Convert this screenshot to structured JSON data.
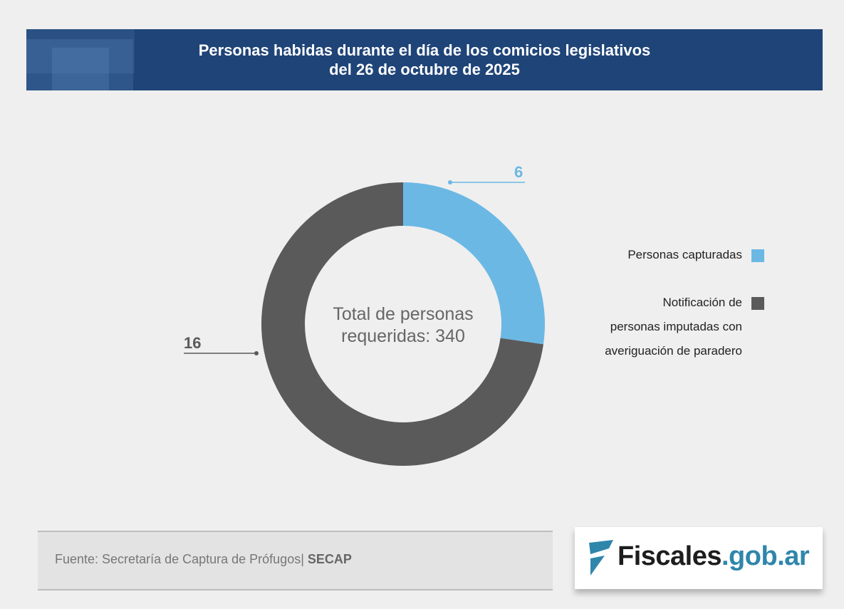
{
  "header": {
    "title_line1": "Personas habidas durante el día de los comicios legislativos",
    "title_line2": "del 26 de octubre de 2025"
  },
  "chart_data": {
    "type": "pie",
    "donut": true,
    "categories": [
      "Personas capturadas",
      "Notificación de personas imputadas con averiguación de paradero"
    ],
    "values": [
      6,
      16
    ],
    "data_labels": [
      "6",
      "16"
    ],
    "colors": [
      "#6bb8e4",
      "#5a5a5a"
    ],
    "center_text": [
      "Total de personas",
      "requeridas: 340"
    ],
    "legend_placement": "right"
  },
  "legend": {
    "item1": "Personas capturadas",
    "item2_line1": "Notificación de",
    "item2_line2": "personas imputadas con",
    "item2_line3": "averiguación de paradero"
  },
  "footer": {
    "source": "Fuente: Secretaría de Captura de Prófugos|",
    "source_bold": "SECAP"
  },
  "logo": {
    "part1": "Fiscales",
    "part2": ".gob.ar"
  }
}
